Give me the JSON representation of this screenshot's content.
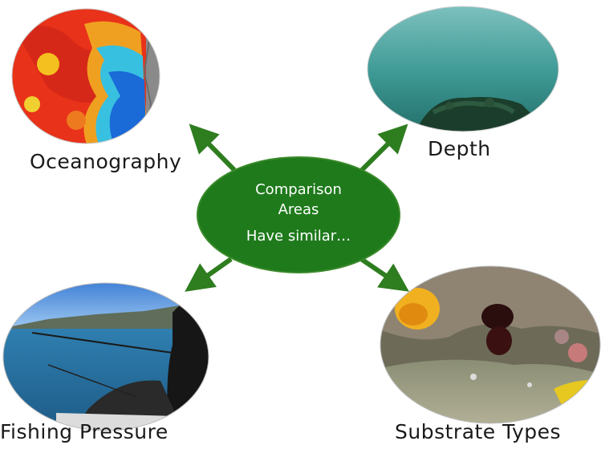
{
  "center": {
    "line1": "Comparison",
    "line2": "Areas",
    "line3": "Have similar…",
    "fill": "#1f7a1c"
  },
  "nodes": {
    "oceanography": {
      "label": "Oceanography",
      "image": "sea-surface-temperature-map"
    },
    "depth": {
      "label": "Depth",
      "image": "underwater-reef-view"
    },
    "fishing": {
      "label": "Fishing Pressure",
      "image": "boat-fishing-scene"
    },
    "substrate": {
      "label": "Substrate Types",
      "image": "rocky-seafloor-with-invertebrates"
    }
  },
  "colors": {
    "arrow": "#2e7d1f",
    "center_fill": "#1f7a1c",
    "center_stroke": "#3a8a2a"
  }
}
